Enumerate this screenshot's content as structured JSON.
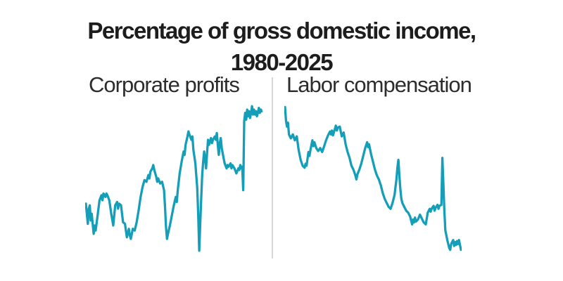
{
  "header": {
    "title_line1": "Percentage of gross domestic income,",
    "title_line2": "1980-2025"
  },
  "accent_color": "#159EB8",
  "divider_color": "#d7d7d7",
  "chart_data": {
    "suptitle": "Percentage of gross domestic income, 1980-2025",
    "charts": [
      {
        "type": "line",
        "title": "Corporate profits",
        "x_unit": "year",
        "y_unit": "percent of gross domestic income",
        "x_range": [
          1980,
          2025
        ],
        "ylim": [
          6.9,
          16.1
        ],
        "grid": false,
        "axes_shown": false,
        "legend": "none",
        "line_color": "#159EB8",
        "points": [
          [
            1980,
            10.0
          ],
          [
            1980.25,
            9.4
          ],
          [
            1980.5,
            8.8
          ],
          [
            1980.75,
            9.7
          ],
          [
            1981,
            9.9
          ],
          [
            1981.25,
            9.0
          ],
          [
            1981.5,
            9.4
          ],
          [
            1982,
            8.2
          ],
          [
            1982.25,
            8.7
          ],
          [
            1982.5,
            8.4
          ],
          [
            1983,
            9.3
          ],
          [
            1983.5,
            10.2
          ],
          [
            1984,
            10.5
          ],
          [
            1984.25,
            10.2
          ],
          [
            1984.5,
            10.6
          ],
          [
            1985,
            10.4
          ],
          [
            1985.25,
            10.6
          ],
          [
            1985.5,
            10.5
          ],
          [
            1986,
            10.2
          ],
          [
            1986.5,
            9.4
          ],
          [
            1987,
            8.7
          ],
          [
            1987.5,
            9.9
          ],
          [
            1988,
            10.1
          ],
          [
            1988.25,
            9.7
          ],
          [
            1988.5,
            10.0
          ],
          [
            1989,
            9.9
          ],
          [
            1989.5,
            8.9
          ],
          [
            1990,
            8.8
          ],
          [
            1990.25,
            8.4
          ],
          [
            1990.5,
            8.0
          ],
          [
            1991,
            8.5
          ],
          [
            1991.25,
            8.1
          ],
          [
            1991.5,
            7.9
          ],
          [
            1992,
            8.5
          ],
          [
            1992.5,
            8.4
          ],
          [
            1993,
            8.9
          ],
          [
            1993.5,
            9.6
          ],
          [
            1994,
            10.4
          ],
          [
            1994.5,
            11.0
          ],
          [
            1995,
            11.4
          ],
          [
            1995.5,
            11.3
          ],
          [
            1996,
            11.7
          ],
          [
            1996.25,
            11.5
          ],
          [
            1996.5,
            11.9
          ],
          [
            1997,
            12.1
          ],
          [
            1997.25,
            12.3
          ],
          [
            1997.5,
            12.0
          ],
          [
            1998,
            11.6
          ],
          [
            1998.25,
            11.3
          ],
          [
            1998.5,
            11.5
          ],
          [
            1999,
            11.2
          ],
          [
            1999.5,
            11.3
          ],
          [
            2000,
            10.8
          ],
          [
            2000.25,
            9.8
          ],
          [
            2000.5,
            8.6
          ],
          [
            2000.75,
            7.9
          ],
          [
            2001,
            8.2
          ],
          [
            2001.5,
            8.7
          ],
          [
            2002,
            9.3
          ],
          [
            2002.5,
            9.9
          ],
          [
            2003,
            10.4
          ],
          [
            2003.25,
            10.1
          ],
          [
            2003.5,
            10.8
          ],
          [
            2004,
            11.8
          ],
          [
            2004.5,
            12.5
          ],
          [
            2005,
            13.1
          ],
          [
            2005.25,
            12.9
          ],
          [
            2005.5,
            13.5
          ],
          [
            2006,
            14.0
          ],
          [
            2006.25,
            14.3
          ],
          [
            2006.5,
            14.1
          ],
          [
            2007,
            13.8
          ],
          [
            2007.25,
            14.0
          ],
          [
            2007.5,
            13.2
          ],
          [
            2008,
            12.4
          ],
          [
            2008.5,
            10.9
          ],
          [
            2008.75,
            9.3
          ],
          [
            2009,
            7.2
          ],
          [
            2009.25,
            8.8
          ],
          [
            2009.5,
            10.3
          ],
          [
            2009.75,
            11.7
          ],
          [
            2010,
            12.5
          ],
          [
            2010.25,
            13.1
          ],
          [
            2010.5,
            12.7
          ],
          [
            2010.75,
            12.1
          ],
          [
            2011,
            13.0
          ],
          [
            2011.25,
            13.8
          ],
          [
            2011.5,
            13.5
          ],
          [
            2012,
            13.9
          ],
          [
            2012.25,
            13.6
          ],
          [
            2012.5,
            13.8
          ],
          [
            2013,
            14.0
          ],
          [
            2013.25,
            13.8
          ],
          [
            2013.5,
            14.2
          ],
          [
            2013.75,
            13.5
          ],
          [
            2014,
            12.9
          ],
          [
            2014.25,
            13.6
          ],
          [
            2014.5,
            13.9
          ],
          [
            2014.75,
            13.3
          ],
          [
            2015,
            13.0
          ],
          [
            2015.25,
            12.7
          ],
          [
            2015.5,
            12.4
          ],
          [
            2016,
            12.1
          ],
          [
            2016.25,
            12.3
          ],
          [
            2016.5,
            12.2
          ],
          [
            2017,
            12.4
          ],
          [
            2017.25,
            12.1
          ],
          [
            2017.5,
            12.3
          ],
          [
            2018,
            12.1
          ],
          [
            2018.5,
            11.8
          ],
          [
            2019,
            12.1
          ],
          [
            2019.25,
            12.0
          ],
          [
            2019.5,
            12.3
          ],
          [
            2019.75,
            12.1
          ],
          [
            2020,
            12.2
          ],
          [
            2020.25,
            10.8
          ],
          [
            2020.5,
            14.9
          ],
          [
            2020.75,
            15.4
          ],
          [
            2021,
            15.0
          ],
          [
            2021.25,
            15.6
          ],
          [
            2021.5,
            15.2
          ],
          [
            2021.75,
            15.5
          ],
          [
            2022,
            15.1
          ],
          [
            2022.25,
            15.4
          ],
          [
            2022.5,
            15.8
          ],
          [
            2022.75,
            15.3
          ],
          [
            2023,
            15.6
          ],
          [
            2023.25,
            15.3
          ],
          [
            2023.5,
            15.5
          ],
          [
            2023.75,
            15.2
          ],
          [
            2024,
            15.4
          ],
          [
            2024.25,
            15.7
          ],
          [
            2024.5,
            15.4
          ],
          [
            2024.75,
            15.6
          ],
          [
            2025,
            15.5
          ]
        ]
      },
      {
        "type": "line",
        "title": "Labor compensation",
        "x_unit": "year",
        "y_unit": "percent of gross domestic income",
        "x_range": [
          1980,
          2025
        ],
        "ylim": [
          51.3,
          59.2
        ],
        "grid": false,
        "axes_shown": false,
        "legend": "none",
        "line_color": "#159EB8",
        "points": [
          [
            1980,
            58.9
          ],
          [
            1980.25,
            58.2
          ],
          [
            1980.5,
            57.9
          ],
          [
            1980.75,
            58.1
          ],
          [
            1981,
            57.5
          ],
          [
            1981.5,
            57.3
          ],
          [
            1982,
            57.5
          ],
          [
            1982.5,
            57.2
          ],
          [
            1983,
            57.4
          ],
          [
            1983.5,
            56.7
          ],
          [
            1984,
            56.2
          ],
          [
            1984.5,
            55.9
          ],
          [
            1985,
            55.8
          ],
          [
            1985.25,
            56.0
          ],
          [
            1985.5,
            55.9
          ],
          [
            1986,
            56.6
          ],
          [
            1986.25,
            56.4
          ],
          [
            1986.5,
            56.7
          ],
          [
            1987,
            57.2
          ],
          [
            1987.25,
            56.9
          ],
          [
            1987.5,
            57.1
          ],
          [
            1988,
            56.8
          ],
          [
            1988.5,
            56.65
          ],
          [
            1989,
            56.8
          ],
          [
            1989.5,
            56.6
          ],
          [
            1990,
            56.9
          ],
          [
            1990.5,
            57.2
          ],
          [
            1991,
            57.45
          ],
          [
            1991.5,
            57.65
          ],
          [
            1991.75,
            57.5
          ],
          [
            1992,
            57.7
          ],
          [
            1992.25,
            57.45
          ],
          [
            1992.5,
            57.6
          ],
          [
            1993,
            57.95
          ],
          [
            1993.25,
            57.7
          ],
          [
            1993.5,
            57.85
          ],
          [
            1994,
            57.9
          ],
          [
            1994.5,
            57.4
          ],
          [
            1995,
            57.6
          ],
          [
            1995.5,
            57.0
          ],
          [
            1996,
            56.6
          ],
          [
            1996.5,
            56.3
          ],
          [
            1997,
            55.9
          ],
          [
            1997.5,
            55.7
          ],
          [
            1998,
            55.4
          ],
          [
            1998.25,
            55.2
          ],
          [
            1998.5,
            55.45
          ],
          [
            1999,
            55.7
          ],
          [
            1999.5,
            56.0
          ],
          [
            2000,
            56.4
          ],
          [
            2000.5,
            56.8
          ],
          [
            2001,
            57.1
          ],
          [
            2001.25,
            56.85
          ],
          [
            2001.5,
            57.0
          ],
          [
            2002,
            56.5
          ],
          [
            2002.5,
            56.1
          ],
          [
            2003,
            55.7
          ],
          [
            2003.5,
            55.4
          ],
          [
            2004,
            55.2
          ],
          [
            2004.5,
            54.9
          ],
          [
            2005,
            54.5
          ],
          [
            2005.5,
            54.2
          ],
          [
            2006,
            54.0
          ],
          [
            2006.5,
            53.8
          ],
          [
            2007,
            53.7
          ],
          [
            2007.5,
            54.0
          ],
          [
            2008,
            54.4
          ],
          [
            2008.5,
            55.2
          ],
          [
            2008.75,
            55.8
          ],
          [
            2009,
            56.2
          ],
          [
            2009.25,
            55.4
          ],
          [
            2009.5,
            54.7
          ],
          [
            2009.75,
            54.2
          ],
          [
            2010,
            54.0
          ],
          [
            2010.5,
            53.8
          ],
          [
            2011,
            53.6
          ],
          [
            2011.5,
            53.5
          ],
          [
            2012,
            53.3
          ],
          [
            2012.5,
            52.9
          ],
          [
            2012.75,
            53.15
          ],
          [
            2013,
            53.0
          ],
          [
            2013.25,
            53.25
          ],
          [
            2013.5,
            53.05
          ],
          [
            2014,
            53.15
          ],
          [
            2014.5,
            53.4
          ],
          [
            2015,
            53.2
          ],
          [
            2015.5,
            53.0
          ],
          [
            2016,
            52.9
          ],
          [
            2016.25,
            53.2
          ],
          [
            2016.5,
            53.5
          ],
          [
            2017,
            53.7
          ],
          [
            2017.25,
            53.55
          ],
          [
            2017.5,
            53.7
          ],
          [
            2018,
            53.85
          ],
          [
            2018.25,
            53.6
          ],
          [
            2018.5,
            53.75
          ],
          [
            2019,
            53.9
          ],
          [
            2019.25,
            53.7
          ],
          [
            2019.5,
            53.85
          ],
          [
            2020,
            53.9
          ],
          [
            2020.25,
            56.3
          ],
          [
            2020.5,
            55.0
          ],
          [
            2020.75,
            53.6
          ],
          [
            2021,
            52.6
          ],
          [
            2021.5,
            52.1
          ],
          [
            2022,
            51.7
          ],
          [
            2022.25,
            51.6
          ],
          [
            2022.5,
            51.9
          ],
          [
            2023,
            52.1
          ],
          [
            2023.25,
            51.8
          ],
          [
            2023.5,
            52.0
          ],
          [
            2023.75,
            51.85
          ],
          [
            2024,
            52.05
          ],
          [
            2024.25,
            51.9
          ],
          [
            2024.5,
            52.1
          ],
          [
            2025,
            51.6
          ]
        ]
      }
    ]
  }
}
